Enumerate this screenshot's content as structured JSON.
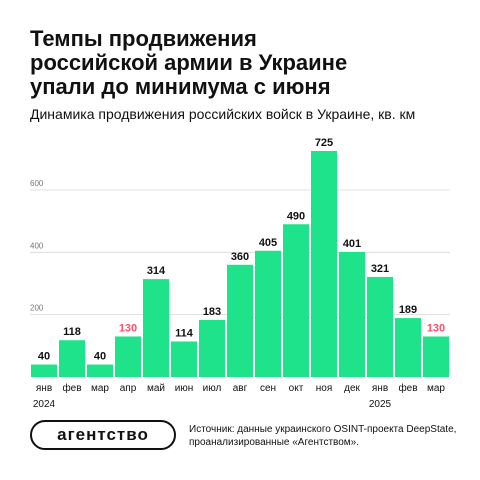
{
  "title_lines": [
    "Темпы продвижения",
    "российской армии в Украине",
    "упали до минимума с июня"
  ],
  "subtitle": "Динамика продвижения российских войск в Украине, кв. км",
  "source": "Источник: данные украинского OSINT-проекта DeepState, проанализированные «Агентством».",
  "logo": "агентство",
  "colors": {
    "bar": "#1fe38a",
    "text": "#111111",
    "highlight": "#ff4f6e",
    "grid": "#d6d6d6",
    "tick": "#777777"
  },
  "chart_data": {
    "type": "bar",
    "categories": [
      "янв",
      "фев",
      "мар",
      "апр",
      "май",
      "июн",
      "июл",
      "авг",
      "сен",
      "окт",
      "ноя",
      "дек",
      "янв",
      "фев",
      "мар"
    ],
    "values": [
      40,
      118,
      40,
      130,
      314,
      114,
      183,
      360,
      405,
      490,
      725,
      401,
      321,
      189,
      130
    ],
    "highlighted": [
      3,
      14
    ],
    "year_labels": [
      {
        "index": 0,
        "label": "2024"
      },
      {
        "index": 12,
        "label": "2025"
      }
    ],
    "yticks": [
      200,
      400,
      600
    ],
    "ylim": [
      0,
      760
    ],
    "title": "Динамика продвижения российских войск в Украине, кв. км",
    "xlabel": "",
    "ylabel": "",
    "grid": true
  }
}
